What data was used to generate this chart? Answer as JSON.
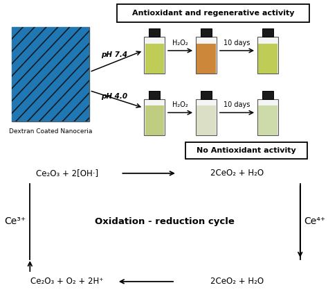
{
  "title": "Antioxidant and regenerative activity",
  "title2": "No Antioxidant activity",
  "label_nanoceria": "Dextran Coated Nanoceria",
  "label_ph74": "pH 7.4",
  "label_ph40": "pH 4.0",
  "label_h2o2": "H₂O₂",
  "label_10days": "10 days",
  "eq1_left": "Ce₂O₃ + 2[OH·]",
  "eq1_right": "2CeO₂ + H₂O",
  "eq2_left": "Ce₂O₃ + O₂ + 2H⁺",
  "eq2_right": "2CeO₂ + H₂O",
  "label_ce3": "Ce³⁺",
  "label_ce4": "Ce⁴⁺",
  "cycle_label": "Oxidation - reduction cycle",
  "bg_color": "#ffffff",
  "img_stripe_colors": [
    "#111111",
    "#cccccc"
  ],
  "vial_colors": {
    "row1": [
      "#b8c840",
      "#c87820",
      "#b8c840"
    ],
    "row2": [
      "#b8c870",
      "#d8ddc0",
      "#c8d8a0"
    ]
  },
  "cap_color": "#1a1a1a",
  "vial_body": "#ffffff",
  "arrow_color": "#000000",
  "text_color": "#000000"
}
